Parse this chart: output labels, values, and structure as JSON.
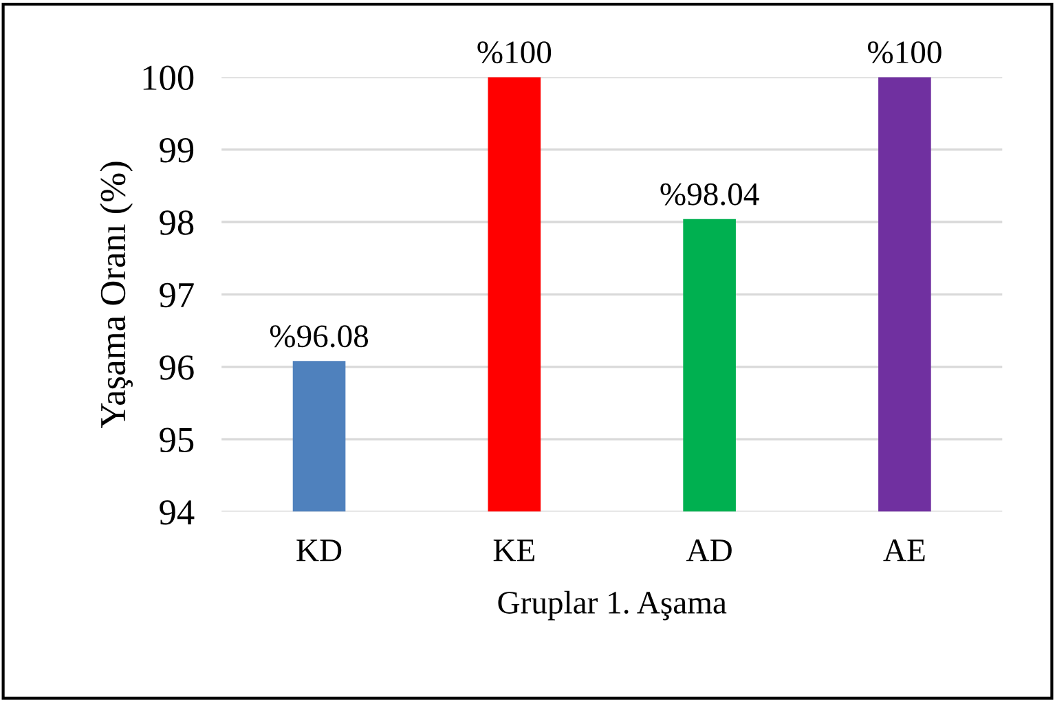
{
  "chart_data": {
    "type": "bar",
    "xlabel": "Gruplar 1. Aşama",
    "ylabel": "Yaşama Oranı (%)",
    "categories": [
      "KD",
      "KE",
      "AD",
      "AE"
    ],
    "values": [
      96.08,
      100,
      98.04,
      100
    ],
    "colors": [
      "#4f81bd",
      "#ff0000",
      "#00b050",
      "#7030a0"
    ],
    "value_labels": [
      "%96.08",
      "%100",
      "%98.04",
      "%100"
    ],
    "ylim": [
      94,
      100
    ],
    "yticks": [
      94,
      95,
      96,
      97,
      98,
      99,
      100
    ],
    "grid": "y"
  }
}
